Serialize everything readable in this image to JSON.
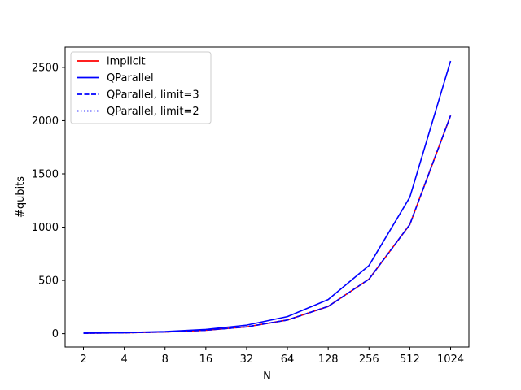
{
  "chart_data": {
    "type": "line",
    "title": "",
    "xlabel": "N",
    "ylabel": "#qubits",
    "x_scale": "log2",
    "x": [
      2,
      4,
      8,
      16,
      32,
      64,
      128,
      256,
      512,
      1024
    ],
    "x_tick_labels": [
      "2",
      "4",
      "8",
      "16",
      "32",
      "64",
      "128",
      "256",
      "512",
      "1024"
    ],
    "ylim": [
      -125,
      2690
    ],
    "y_ticks": [
      0,
      500,
      1000,
      1500,
      2000,
      2500
    ],
    "y_tick_labels": [
      "0",
      "500",
      "1000",
      "1500",
      "2000",
      "2500"
    ],
    "grid": false,
    "legend_position": "top-left",
    "series": [
      {
        "name": "implicit",
        "color": "#ff0000",
        "style": "solid",
        "values": [
          4,
          8,
          16,
          32,
          64,
          128,
          256,
          512,
          1024,
          2048
        ]
      },
      {
        "name": "QParallel",
        "color": "#0000ff",
        "style": "solid",
        "values": [
          5,
          10,
          20,
          40,
          80,
          160,
          320,
          640,
          1280,
          2560
        ]
      },
      {
        "name": "QParallel, limit=3",
        "color": "#0000ff",
        "style": "dashed",
        "values": [
          4,
          8,
          16,
          32,
          64,
          128,
          256,
          512,
          1024,
          2048
        ]
      },
      {
        "name": "QParallel, limit=2",
        "color": "#0000ff",
        "style": "dotted",
        "values": [
          4,
          8,
          16,
          32,
          64,
          128,
          256,
          512,
          1024,
          2048
        ]
      }
    ]
  }
}
